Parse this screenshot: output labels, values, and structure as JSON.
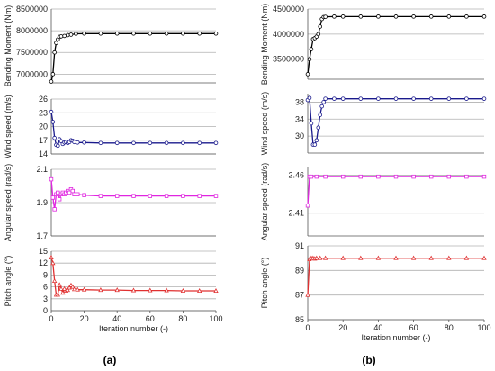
{
  "panel_captions": [
    "(a)",
    "(b)"
  ],
  "chart_data": [
    {
      "type": "line",
      "panel": "a",
      "ylabel": "Bending Moment (Nm)",
      "ylim": [
        6800000,
        8500000
      ],
      "yticks": [
        7000000,
        7500000,
        8000000,
        8500000
      ],
      "xlim": [
        0,
        100
      ],
      "xticks": [],
      "xlabel": "",
      "color": "#000000",
      "marker": "circle",
      "points": [
        [
          0,
          6830000
        ],
        [
          1,
          7000000
        ],
        [
          2,
          7500000
        ],
        [
          3,
          7720000
        ],
        [
          4,
          7800000
        ],
        [
          5,
          7860000
        ],
        [
          6,
          7870000
        ],
        [
          8,
          7880000
        ],
        [
          10,
          7900000
        ],
        [
          12,
          7910000
        ],
        [
          15,
          7930000
        ],
        [
          20,
          7935000
        ],
        [
          30,
          7935000
        ],
        [
          40,
          7935000
        ],
        [
          50,
          7935000
        ],
        [
          60,
          7935000
        ],
        [
          70,
          7935000
        ],
        [
          80,
          7935000
        ],
        [
          90,
          7935000
        ],
        [
          100,
          7935000
        ]
      ]
    },
    {
      "type": "line",
      "panel": "a",
      "ylabel": "Wind speed (m/s)",
      "ylim": [
        14,
        26
      ],
      "yticks": [
        14,
        17,
        20,
        23,
        26
      ],
      "xlim": [
        0,
        100
      ],
      "xticks": [],
      "xlabel": "",
      "color": "#1a1a8c",
      "marker": "circle",
      "points": [
        [
          0,
          23.2
        ],
        [
          1,
          21
        ],
        [
          2,
          17.5
        ],
        [
          3,
          16
        ],
        [
          4,
          15.8
        ],
        [
          5,
          17.2
        ],
        [
          6,
          16.8
        ],
        [
          7,
          16.2
        ],
        [
          8,
          16.5
        ],
        [
          9,
          16.6
        ],
        [
          10,
          16.4
        ],
        [
          11,
          16.6
        ],
        [
          12,
          17
        ],
        [
          13,
          16.9
        ],
        [
          14,
          16.6
        ],
        [
          16,
          16.5
        ],
        [
          20,
          16.5
        ],
        [
          30,
          16.4
        ],
        [
          40,
          16.4
        ],
        [
          50,
          16.4
        ],
        [
          60,
          16.4
        ],
        [
          70,
          16.4
        ],
        [
          80,
          16.4
        ],
        [
          90,
          16.4
        ],
        [
          100,
          16.4
        ]
      ]
    },
    {
      "type": "line",
      "panel": "a",
      "ylabel": "Angular speed (rad/s)",
      "ylim": [
        1.7,
        2.1
      ],
      "yticks": [
        1.7,
        1.9,
        2.1
      ],
      "xlim": [
        0,
        100
      ],
      "xticks": [],
      "xlabel": "",
      "color": "#e026e0",
      "marker": "square",
      "points": [
        [
          0,
          2.04
        ],
        [
          1,
          1.93
        ],
        [
          2,
          1.86
        ],
        [
          3,
          1.95
        ],
        [
          4,
          1.96
        ],
        [
          5,
          1.92
        ],
        [
          6,
          1.95
        ],
        [
          7,
          1.96
        ],
        [
          8,
          1.95
        ],
        [
          9,
          1.96
        ],
        [
          10,
          1.97
        ],
        [
          11,
          1.96
        ],
        [
          12,
          1.98
        ],
        [
          13,
          1.97
        ],
        [
          14,
          1.95
        ],
        [
          16,
          1.95
        ],
        [
          20,
          1.945
        ],
        [
          30,
          1.94
        ],
        [
          40,
          1.94
        ],
        [
          50,
          1.94
        ],
        [
          60,
          1.94
        ],
        [
          70,
          1.94
        ],
        [
          80,
          1.94
        ],
        [
          90,
          1.94
        ],
        [
          100,
          1.94
        ]
      ]
    },
    {
      "type": "line",
      "panel": "a",
      "ylabel": "Pitch angle (°)",
      "ylim": [
        0,
        15
      ],
      "yticks": [
        0,
        3,
        6,
        9,
        12,
        15
      ],
      "xlim": [
        0,
        100
      ],
      "xticks": [
        0,
        20,
        40,
        60,
        80,
        100
      ],
      "xlabel": "Iteration number (-)",
      "color": "#e03030",
      "marker": "triangle",
      "points": [
        [
          0,
          13.4
        ],
        [
          1,
          12
        ],
        [
          2,
          7.5
        ],
        [
          3,
          4
        ],
        [
          4,
          4
        ],
        [
          5,
          6.5
        ],
        [
          6,
          5.5
        ],
        [
          7,
          4.5
        ],
        [
          8,
          5.5
        ],
        [
          9,
          5
        ],
        [
          10,
          5.2
        ],
        [
          11,
          5.8
        ],
        [
          12,
          6.4
        ],
        [
          13,
          6
        ],
        [
          14,
          5.4
        ],
        [
          16,
          5.3
        ],
        [
          20,
          5.3
        ],
        [
          30,
          5.2
        ],
        [
          40,
          5.2
        ],
        [
          50,
          5.1
        ],
        [
          60,
          5.1
        ],
        [
          70,
          5.1
        ],
        [
          80,
          5
        ],
        [
          90,
          5
        ],
        [
          100,
          5
        ]
      ]
    },
    {
      "type": "line",
      "panel": "b",
      "ylabel": "Bending Moment (Nm)",
      "ylim": [
        3100000,
        4500000
      ],
      "yticks": [
        3500000,
        4000000,
        4500000
      ],
      "xlim": [
        0,
        100
      ],
      "xticks": [],
      "xlabel": "",
      "color": "#000000",
      "marker": "circle",
      "points": [
        [
          0,
          3200000
        ],
        [
          1,
          3500000
        ],
        [
          2,
          3700000
        ],
        [
          3,
          3900000
        ],
        [
          4,
          3920000
        ],
        [
          5,
          3950000
        ],
        [
          6,
          4000000
        ],
        [
          7,
          4150000
        ],
        [
          8,
          4300000
        ],
        [
          9,
          4340000
        ],
        [
          10,
          4345000
        ],
        [
          15,
          4350000
        ],
        [
          20,
          4350000
        ],
        [
          30,
          4350000
        ],
        [
          40,
          4350000
        ],
        [
          50,
          4350000
        ],
        [
          60,
          4350000
        ],
        [
          70,
          4350000
        ],
        [
          80,
          4350000
        ],
        [
          90,
          4350000
        ],
        [
          100,
          4350000
        ]
      ]
    },
    {
      "type": "line",
      "panel": "b",
      "ylabel": "Wind speed (m/s)",
      "ylim": [
        26,
        40
      ],
      "yticks": [
        30,
        34,
        38
      ],
      "xlim": [
        0,
        100
      ],
      "xticks": [],
      "xlabel": "",
      "color": "#1a1a8c",
      "marker": "circle",
      "points": [
        [
          0,
          38.5
        ],
        [
          1,
          39
        ],
        [
          2,
          33
        ],
        [
          3,
          28
        ],
        [
          4,
          28
        ],
        [
          5,
          29
        ],
        [
          6,
          32
        ],
        [
          7,
          35
        ],
        [
          8,
          37
        ],
        [
          9,
          38
        ],
        [
          10,
          38.8
        ],
        [
          15,
          38.8
        ],
        [
          20,
          38.8
        ],
        [
          30,
          38.8
        ],
        [
          40,
          38.8
        ],
        [
          50,
          38.8
        ],
        [
          60,
          38.8
        ],
        [
          70,
          38.8
        ],
        [
          80,
          38.8
        ],
        [
          90,
          38.8
        ],
        [
          100,
          38.8
        ]
      ]
    },
    {
      "type": "line",
      "panel": "b",
      "ylabel": "Angular speed (rad/s)",
      "ylim": [
        2.38,
        2.47
      ],
      "yticks": [
        2.41,
        2.46
      ],
      "xlim": [
        0,
        100
      ],
      "xticks": [],
      "xlabel": "",
      "color": "#e026e0",
      "marker": "square",
      "points": [
        [
          0,
          2.42
        ],
        [
          1,
          2.458
        ],
        [
          2,
          2.458
        ],
        [
          5,
          2.458
        ],
        [
          10,
          2.458
        ],
        [
          20,
          2.458
        ],
        [
          30,
          2.458
        ],
        [
          40,
          2.458
        ],
        [
          50,
          2.458
        ],
        [
          60,
          2.458
        ],
        [
          70,
          2.458
        ],
        [
          80,
          2.458
        ],
        [
          90,
          2.458
        ],
        [
          100,
          2.458
        ]
      ]
    },
    {
      "type": "line",
      "panel": "b",
      "ylabel": "Pitch angle (°)",
      "ylim": [
        85,
        91
      ],
      "yticks": [
        85,
        87,
        89,
        91
      ],
      "xlim": [
        0,
        100
      ],
      "xticks": [
        0,
        20,
        40,
        60,
        80,
        100
      ],
      "xlabel": "Iteration number (-)",
      "color": "#e03030",
      "marker": "triangle",
      "points": [
        [
          0,
          87
        ],
        [
          1,
          89.9
        ],
        [
          2,
          90
        ],
        [
          3,
          90
        ],
        [
          4,
          89.95
        ],
        [
          5,
          90
        ],
        [
          7,
          90
        ],
        [
          10,
          90
        ],
        [
          20,
          90
        ],
        [
          30,
          90
        ],
        [
          40,
          90
        ],
        [
          50,
          90
        ],
        [
          60,
          90
        ],
        [
          70,
          90
        ],
        [
          80,
          90
        ],
        [
          90,
          90
        ],
        [
          100,
          90
        ]
      ]
    }
  ]
}
